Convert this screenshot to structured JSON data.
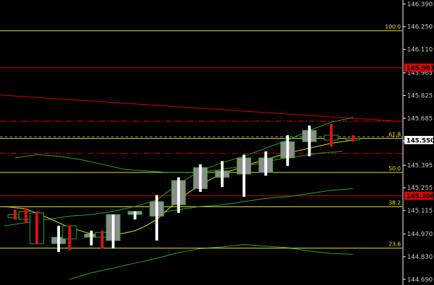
{
  "colors": {
    "background": "#000000",
    "axis": "#ffffff",
    "fib": "#e6e600",
    "red_level": "#e00000",
    "trendline": "#e00000",
    "dash_red": "#e00000",
    "dash_white": "#9a9a9a",
    "ma_fast": "#f0e000",
    "ma_green": "#2ea52e",
    "bull_fill": "#8c8c8c",
    "bull_border": "#2ea52e",
    "bear_fill": "#000000",
    "bear_border": "#2ea52e",
    "wick_up": "#ffffff",
    "wick_down": "#e01010",
    "price_tag_bg": "#ffffff",
    "price_tag_text": "#000000",
    "red_tag_bg": "#e00000",
    "red_tag_text": "#000000"
  },
  "chart_data": {
    "type": "candlestick",
    "y_ticks": [
      "146.390",
      "146.250",
      "146.110",
      "145.965",
      "145.825",
      "145.685",
      "145.545",
      "145.395",
      "145.255",
      "145.115",
      "144.970",
      "144.830",
      "144.690"
    ],
    "ylim": [
      144.69,
      146.39
    ],
    "price_tags": [
      {
        "label": "145.997",
        "value": 145.997,
        "style": "red"
      },
      {
        "label": "145.550",
        "value": 145.55,
        "style": "white"
      },
      {
        "label": "145.206",
        "value": 145.206,
        "style": "red"
      }
    ],
    "fib_levels": [
      {
        "label": "100.0",
        "value": 146.225
      },
      {
        "label": "61.8",
        "value": 145.56
      },
      {
        "label": "50.0",
        "value": 145.35
      },
      {
        "label": "38.2",
        "value": 145.138
      },
      {
        "label": "23.6",
        "value": 144.883
      }
    ],
    "horizontal_lines": [
      {
        "value": 145.997,
        "style": "red-solid"
      },
      {
        "value": 145.206,
        "style": "red-solid"
      },
      {
        "value": 145.667,
        "style": "red-dashdot"
      },
      {
        "value": 145.468,
        "style": "red-dashdot"
      },
      {
        "value": 145.57,
        "style": "white-dashed"
      }
    ],
    "trendline": {
      "x": [
        0,
        36
      ],
      "y": [
        145.828,
        145.667
      ]
    },
    "candles": [
      {
        "x": 1,
        "open": 145.09,
        "high": 145.12,
        "low": 145.06,
        "close": 145.07
      },
      {
        "x": 2,
        "open": 145.11,
        "high": 145.13,
        "low": 145.04,
        "close": 145.06
      },
      {
        "x": 3,
        "open": 145.1,
        "high": 145.11,
        "low": 144.91,
        "close": 144.91
      },
      {
        "x": 5,
        "open": 144.91,
        "high": 145.02,
        "low": 144.86,
        "close": 144.95
      },
      {
        "x": 6,
        "open": 145.02,
        "high": 145.02,
        "low": 144.87,
        "close": 144.94
      },
      {
        "x": 8,
        "open": 144.95,
        "high": 144.99,
        "low": 144.9,
        "close": 144.97
      },
      {
        "x": 9,
        "open": 144.98,
        "high": 144.99,
        "low": 144.88,
        "close": 144.95
      },
      {
        "x": 10,
        "open": 144.93,
        "high": 145.09,
        "low": 144.88,
        "close": 145.09
      },
      {
        "x": 12,
        "open": 145.09,
        "high": 145.11,
        "low": 145.06,
        "close": 145.11
      },
      {
        "x": 14,
        "open": 145.08,
        "high": 145.21,
        "low": 144.93,
        "close": 145.17
      },
      {
        "x": 16,
        "open": 145.15,
        "high": 145.32,
        "low": 145.1,
        "close": 145.3
      },
      {
        "x": 18,
        "open": 145.25,
        "high": 145.4,
        "low": 145.23,
        "close": 145.38
      },
      {
        "x": 20,
        "open": 145.32,
        "high": 145.42,
        "low": 145.26,
        "close": 145.36
      },
      {
        "x": 22,
        "open": 145.34,
        "high": 145.46,
        "low": 145.2,
        "close": 145.44
      },
      {
        "x": 24,
        "open": 145.35,
        "high": 145.48,
        "low": 145.33,
        "close": 145.44
      },
      {
        "x": 26,
        "open": 145.44,
        "high": 145.58,
        "low": 145.39,
        "close": 145.54
      },
      {
        "x": 28,
        "open": 145.54,
        "high": 145.64,
        "low": 145.45,
        "close": 145.61
      },
      {
        "x": 30,
        "open": 145.58,
        "high": 145.65,
        "low": 145.51,
        "close": 145.55
      },
      {
        "x": 32,
        "open": 145.56,
        "high": 145.58,
        "low": 145.54,
        "close": 145.55
      }
    ],
    "ma_fast": {
      "x": [
        0,
        2,
        4,
        6,
        8,
        9,
        10,
        11,
        12,
        13,
        14,
        15,
        16,
        17,
        18,
        19,
        20,
        22,
        24,
        26,
        28,
        30,
        32
      ],
      "y": [
        145.14,
        145.125,
        145.07,
        145.01,
        144.97,
        144.962,
        144.965,
        144.975,
        144.99,
        145.02,
        145.06,
        145.12,
        145.18,
        145.23,
        145.27,
        145.31,
        145.34,
        145.39,
        145.43,
        145.47,
        145.5,
        145.53,
        145.55
      ]
    },
    "ma_green_upper": {
      "x": [
        0,
        2,
        4,
        6,
        8,
        9,
        10,
        12,
        14,
        16,
        18,
        20,
        22,
        24,
        26,
        28,
        30,
        32
      ],
      "y": [
        145.02,
        145.04,
        145.06,
        145.08,
        145.09,
        145.1,
        145.11,
        145.14,
        145.18,
        145.28,
        145.36,
        145.41,
        145.45,
        145.5,
        145.55,
        145.61,
        145.66,
        145.69
      ]
    },
    "ma_green_mid": {
      "x": [
        1,
        3,
        5,
        7,
        9,
        11,
        13,
        15,
        17,
        19,
        21,
        23,
        25,
        27,
        29,
        31
      ],
      "y": [
        145.44,
        145.46,
        145.45,
        145.43,
        145.4,
        145.37,
        145.36,
        145.35,
        145.35,
        145.36,
        145.38,
        145.4,
        145.43,
        145.45,
        145.47,
        145.48
      ]
    },
    "ma_green_low": {
      "x": [
        14,
        16,
        18,
        20,
        22,
        24,
        26,
        28,
        30,
        32
      ],
      "y": [
        145.1,
        145.12,
        145.14,
        145.15,
        145.17,
        145.19,
        145.2,
        145.22,
        145.24,
        145.25
      ]
    },
    "ma_green_bottom": {
      "x": [
        6,
        8,
        10,
        12,
        14,
        16,
        18,
        20,
        22,
        24,
        26,
        28,
        30,
        32
      ],
      "y": [
        144.69,
        144.73,
        144.76,
        144.79,
        144.82,
        144.855,
        144.88,
        144.89,
        144.905,
        144.895,
        144.885,
        144.865,
        144.85,
        144.845
      ]
    },
    "xlim": [
      0,
      39
    ],
    "grid": false,
    "title": "",
    "xlabel": "",
    "ylabel": ""
  }
}
